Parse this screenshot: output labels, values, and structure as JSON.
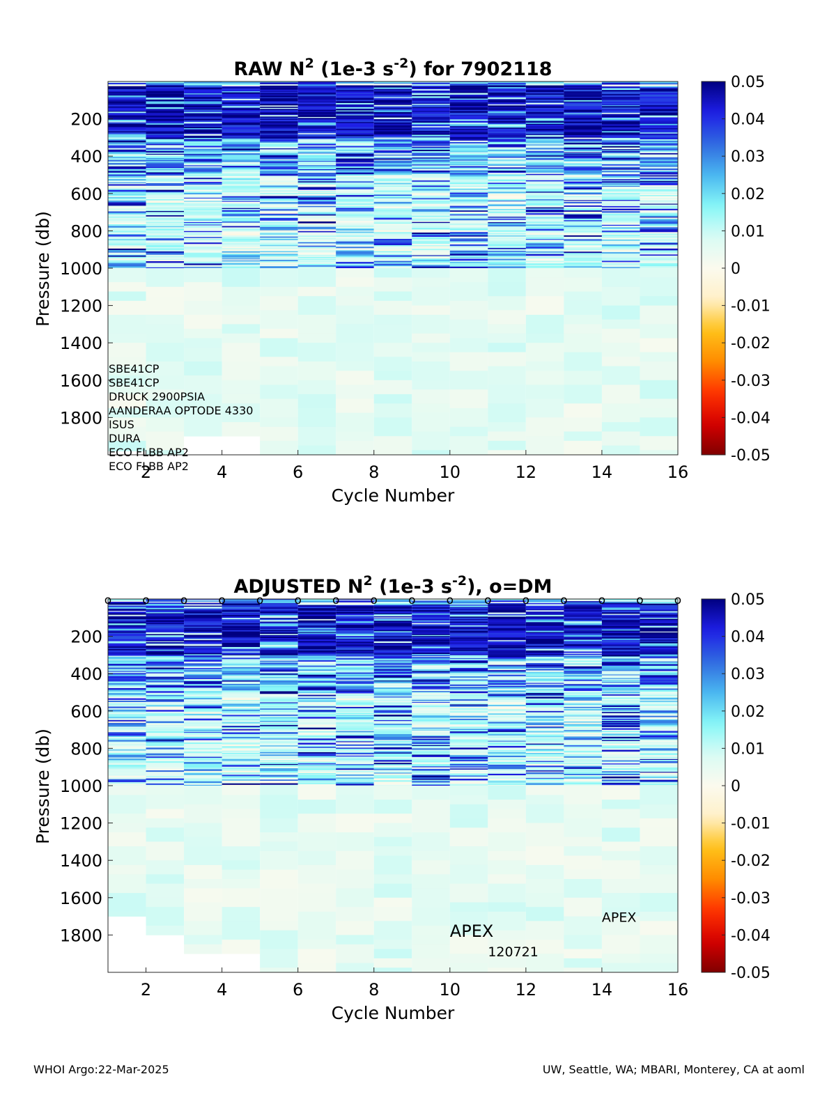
{
  "colormap": {
    "stops": [
      "#800000",
      "#d40000",
      "#ff3300",
      "#ff8c00",
      "#ffc21a",
      "#fff0c8",
      "#fbfaee",
      "#d9fbf4",
      "#86f7f7",
      "#4ab6f0",
      "#3069e0",
      "#1e1ee6",
      "#000080"
    ]
  },
  "chart_data": [
    {
      "type": "heatmap",
      "title_main": "RAW N",
      "title_sup1": "2",
      "title_mid": " (1e-3 s",
      "title_sup2": "-2",
      "title_end": ") for 7902118",
      "xlabel": "Cycle Number",
      "ylabel": "Pressure (db)",
      "xlim": [
        1,
        16
      ],
      "ylim": [
        0,
        2000
      ],
      "y_reversed": true,
      "xticks": [
        "2",
        "4",
        "6",
        "8",
        "10",
        "12",
        "14",
        "16"
      ],
      "yticks": [
        "200",
        "400",
        "600",
        "800",
        "1000",
        "1200",
        "1400",
        "1600",
        "1800"
      ],
      "colorbar": {
        "clim": [
          -0.05,
          0.05
        ],
        "ticks": [
          "0.05",
          "0.04",
          "0.03",
          "0.02",
          "0.01",
          "0",
          "-0.01",
          "-0.02",
          "-0.03",
          "-0.04",
          "-0.05"
        ]
      },
      "cycles": [
        1,
        2,
        3,
        4,
        5,
        6,
        7,
        8,
        9,
        10,
        11,
        12,
        13,
        14,
        15,
        16
      ],
      "max_pressure": [
        1980,
        2000,
        1900,
        1900,
        2000,
        2000,
        2000,
        2000,
        2000,
        2000,
        2000,
        2000,
        2000,
        2000,
        2000,
        2000
      ],
      "sensor_list": [
        "SBE41CP",
        "SBE41CP",
        "DRUCK 2900PSIA",
        "AANDERAA OPTODE 4330",
        "ISUS",
        "DURA",
        "ECO FLBB AP2",
        "ECO FLBB AP2"
      ],
      "dm_markers": []
    },
    {
      "type": "heatmap",
      "title_main": "ADJUSTED N",
      "title_sup1": "2",
      "title_mid": " (1e-3 s",
      "title_sup2": "-2",
      "title_end": "), o=DM",
      "xlabel": "Cycle Number",
      "ylabel": "Pressure (db)",
      "xlim": [
        1,
        16
      ],
      "ylim": [
        0,
        2000
      ],
      "y_reversed": true,
      "xticks": [
        "2",
        "4",
        "6",
        "8",
        "10",
        "12",
        "14",
        "16"
      ],
      "yticks": [
        "200",
        "400",
        "600",
        "800",
        "1000",
        "1200",
        "1400",
        "1600",
        "1800"
      ],
      "colorbar": {
        "clim": [
          -0.05,
          0.05
        ],
        "ticks": [
          "0.05",
          "0.04",
          "0.03",
          "0.02",
          "0.01",
          "0",
          "-0.01",
          "-0.02",
          "-0.03",
          "-0.04",
          "-0.05"
        ]
      },
      "cycles": [
        1,
        2,
        3,
        4,
        5,
        6,
        7,
        8,
        9,
        10,
        11,
        12,
        13,
        14,
        15,
        16
      ],
      "max_pressure": [
        1700,
        1800,
        1900,
        1900,
        2000,
        2000,
        2000,
        2000,
        2000,
        2000,
        2000,
        2000,
        2000,
        2000,
        2000,
        2000
      ],
      "dm_markers": [
        1,
        2,
        3,
        4,
        5,
        6,
        7,
        8,
        9,
        10,
        11,
        12,
        13,
        14,
        15,
        16
      ],
      "dm_marker_symbol": "o",
      "annotations": [
        {
          "text": "APEX",
          "x": 14,
          "y": 1730,
          "size": "small"
        },
        {
          "text": "APEX",
          "x": 10,
          "y": 1810,
          "size": "large"
        },
        {
          "text": "120721",
          "x": 11,
          "y": 1915,
          "size": "small"
        }
      ]
    }
  ],
  "footer": {
    "left": "WHOI Argo:22-Mar-2025",
    "right": "UW, Seattle, WA; MBARI, Monterey, CA at aoml"
  }
}
